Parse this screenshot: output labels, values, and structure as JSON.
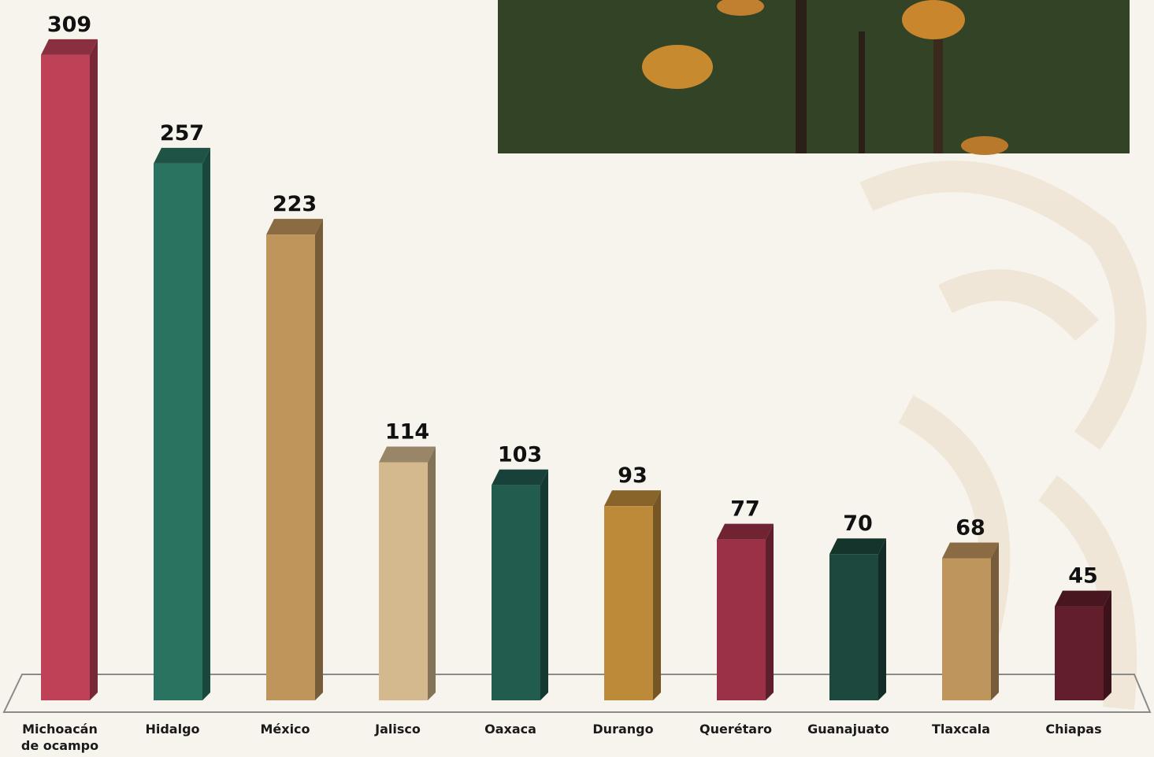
{
  "chart_data": {
    "type": "bar3d",
    "categories": [
      "Michoacán de ocampo",
      "Hidalgo",
      "México",
      "Jalisco",
      "Oaxaca",
      "Durango",
      "Querétaro",
      "Guanajuato",
      "Tlaxcala",
      "Chiapas"
    ],
    "values": [
      309,
      257,
      223,
      114,
      103,
      93,
      77,
      70,
      68,
      45
    ],
    "colors": [
      "#be4157",
      "#2a7361",
      "#c0955c",
      "#d4b98f",
      "#215c4f",
      "#bd8a3a",
      "#9a3147",
      "#1c483d",
      "#bf955e",
      "#621f2b"
    ]
  }
}
